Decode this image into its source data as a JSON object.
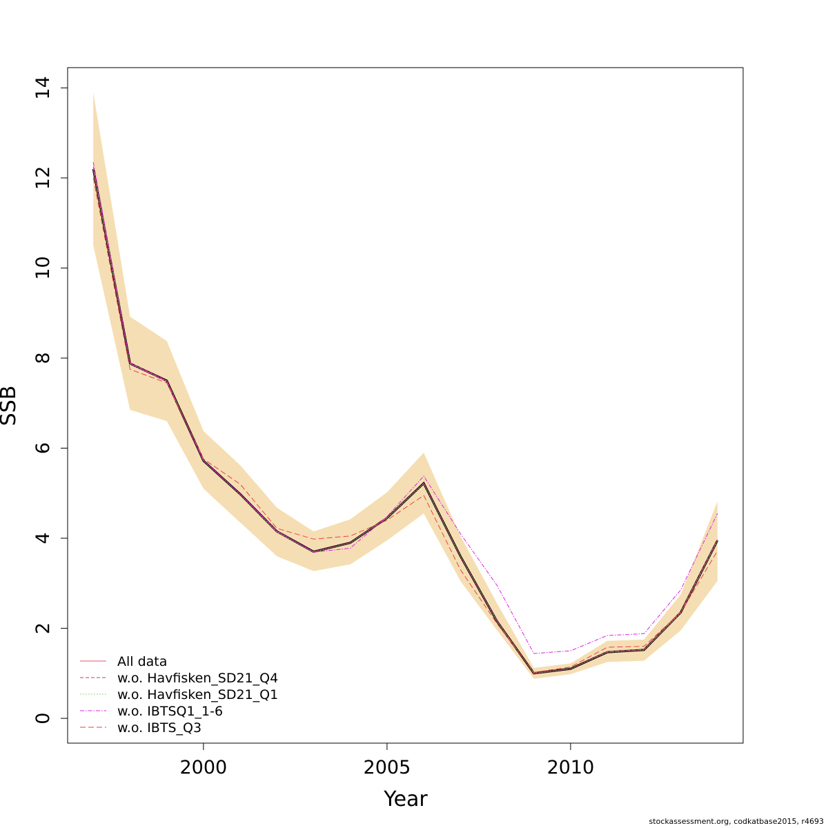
{
  "footer": "stockassessment.org, codkatbase2015, r4693",
  "chart_data": {
    "type": "line",
    "xlabel": "Year",
    "ylabel": "SSB",
    "xlim": [
      1996.3,
      2014.7
    ],
    "ylim": [
      -0.55,
      14.45
    ],
    "x_ticks": [
      2000,
      2005,
      2010
    ],
    "y_ticks": [
      0,
      2,
      4,
      6,
      8,
      10,
      12,
      14
    ],
    "grid": false,
    "legend_position": "bottom-left",
    "x": [
      1997,
      1998,
      1999,
      2000,
      2001,
      2002,
      2003,
      2004,
      2005,
      2006,
      2007,
      2008,
      2009,
      2010,
      2011,
      2012,
      2013,
      2014
    ],
    "band": {
      "color": "#F5DEB3",
      "lower": [
        10.5,
        6.85,
        6.6,
        5.1,
        4.35,
        3.6,
        3.27,
        3.42,
        3.95,
        4.55,
        3.05,
        1.95,
        0.88,
        0.98,
        1.25,
        1.28,
        1.95,
        3.05
      ],
      "upper": [
        13.9,
        8.92,
        8.38,
        6.38,
        5.62,
        4.68,
        4.15,
        4.42,
        5.02,
        5.9,
        4.05,
        2.55,
        1.12,
        1.22,
        1.72,
        1.75,
        2.75,
        4.82
      ]
    },
    "main_line": {
      "color": "#000000",
      "values": [
        12.2,
        7.88,
        7.5,
        5.72,
        4.98,
        4.15,
        3.7,
        3.9,
        4.45,
        5.22,
        3.6,
        2.15,
        1.0,
        1.1,
        1.47,
        1.52,
        2.35,
        3.95
      ]
    },
    "series": [
      {
        "name": "All data",
        "color": "#DF536B",
        "dash": "none",
        "values": [
          12.2,
          7.88,
          7.5,
          5.72,
          4.98,
          4.15,
          3.7,
          3.9,
          4.45,
          5.22,
          3.6,
          2.15,
          1.0,
          1.1,
          1.47,
          1.52,
          2.35,
          3.95
        ]
      },
      {
        "name": "w.o. Havfisken_SD21_Q4",
        "color": "#CC2F8F",
        "dash": "5,3",
        "values": [
          12.25,
          7.9,
          7.5,
          5.72,
          4.98,
          4.14,
          3.7,
          3.9,
          4.46,
          5.22,
          3.6,
          2.16,
          1.0,
          1.1,
          1.48,
          1.53,
          2.37,
          3.97
        ]
      },
      {
        "name": "w.o. Havfisken_SD21_Q1",
        "color": "#61D04F",
        "dash": "1.5,2.5",
        "values": [
          12.2,
          7.87,
          7.49,
          5.72,
          4.97,
          4.14,
          3.69,
          3.9,
          4.45,
          5.21,
          3.6,
          2.15,
          1.0,
          1.1,
          1.47,
          1.52,
          2.34,
          3.94
        ]
      },
      {
        "name": "w.o. IBTSQ1_1-6",
        "color": "#E020E0",
        "dash": "6,2,1.5,2",
        "values": [
          12.35,
          7.88,
          7.48,
          5.72,
          4.98,
          4.16,
          3.69,
          3.78,
          4.48,
          5.38,
          4.1,
          2.95,
          1.44,
          1.5,
          1.84,
          1.88,
          2.85,
          4.55
        ]
      },
      {
        "name": "w.o. IBTS_Q3",
        "color": "#E84040",
        "dash": "8,4",
        "values": [
          12.0,
          7.75,
          7.45,
          5.76,
          5.2,
          4.22,
          3.98,
          4.05,
          4.4,
          4.95,
          3.3,
          2.1,
          1.02,
          1.14,
          1.58,
          1.6,
          2.35,
          3.72
        ]
      }
    ]
  }
}
